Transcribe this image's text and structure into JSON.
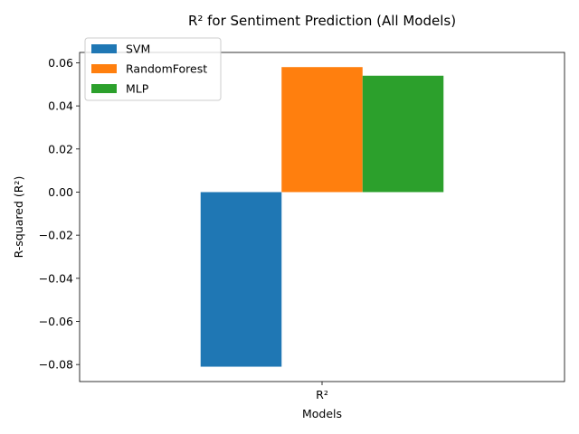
{
  "chart_data": {
    "type": "bar",
    "title": "R² for Sentiment Prediction (All Models)",
    "xlabel": "Models",
    "ylabel": "R-squared (R²)",
    "categories": [
      "R²"
    ],
    "series": [
      {
        "name": "SVM",
        "values": [
          -0.081
        ],
        "color": "#1f77b4"
      },
      {
        "name": "RandomForest",
        "values": [
          0.058
        ],
        "color": "#ff7f0e"
      },
      {
        "name": "MLP",
        "values": [
          0.054
        ],
        "color": "#2ca02c"
      }
    ],
    "ylim": [
      -0.0879,
      0.0648
    ],
    "yticks": [
      -0.08,
      -0.06,
      -0.04,
      -0.02,
      0.0,
      0.02,
      0.04,
      0.06
    ],
    "ytick_labels": [
      "−0.08",
      "−0.06",
      "−0.04",
      "−0.02",
      "0.00",
      "0.02",
      "0.04",
      "0.06"
    ],
    "legend": {
      "position": "top-left"
    }
  }
}
